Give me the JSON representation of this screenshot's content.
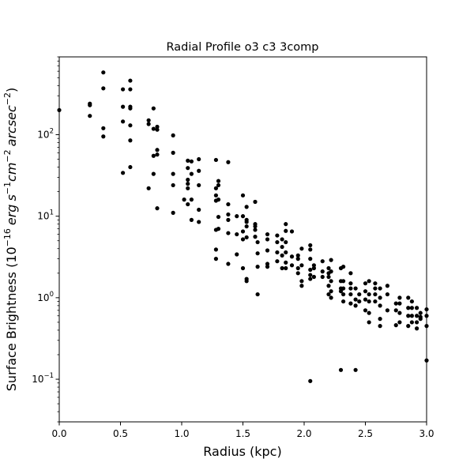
{
  "chart_data": {
    "type": "scatter",
    "title": "Radial Profile o3 c3 3comp",
    "xlabel": "Radius (kpc)",
    "ylabel": "Surface Brightness (10^{-16} erg s^{-1} cm^{-2} arcsec^{-2})",
    "ylabel_parts": {
      "prefix": "Surface Brightness (",
      "base": "10",
      "base_exp": "−16",
      "unit1": "erg",
      "unit2": "s",
      "unit2_exp": "−1",
      "unit3": "cm",
      "unit3_exp": "−2",
      "unit4": "arcsec",
      "unit4_exp": "−2",
      "suffix": ")"
    },
    "xlim": [
      0,
      3.0
    ],
    "ylim": [
      0.03,
      900
    ],
    "yscale": "log",
    "grid": false,
    "legend": "none",
    "marker_color": "#000000",
    "x_ticks": [
      {
        "value": 0.0,
        "label": "0.0"
      },
      {
        "value": 0.5,
        "label": "0.5"
      },
      {
        "value": 1.0,
        "label": "1.0"
      },
      {
        "value": 1.5,
        "label": "1.5"
      },
      {
        "value": 2.0,
        "label": "2.0"
      },
      {
        "value": 2.5,
        "label": "2.5"
      },
      {
        "value": 3.0,
        "label": "3.0"
      }
    ],
    "y_ticks": [
      {
        "value": 0.1,
        "base": "10",
        "exp": "−1"
      },
      {
        "value": 1,
        "base": "10",
        "exp": "0"
      },
      {
        "value": 10,
        "base": "10",
        "exp": "1"
      },
      {
        "value": 100,
        "base": "10",
        "exp": "2"
      }
    ],
    "points": [
      [
        0.0,
        200
      ],
      [
        0.25,
        240
      ],
      [
        0.25,
        230
      ],
      [
        0.25,
        170
      ],
      [
        0.36,
        580
      ],
      [
        0.36,
        370
      ],
      [
        0.36,
        120
      ],
      [
        0.36,
        95
      ],
      [
        0.52,
        360
      ],
      [
        0.52,
        220
      ],
      [
        0.52,
        145
      ],
      [
        0.52,
        34
      ],
      [
        0.58,
        460
      ],
      [
        0.58,
        360
      ],
      [
        0.58,
        220
      ],
      [
        0.58,
        210
      ],
      [
        0.58,
        130
      ],
      [
        0.58,
        85
      ],
      [
        0.58,
        40
      ],
      [
        0.73,
        150
      ],
      [
        0.73,
        135
      ],
      [
        0.73,
        22
      ],
      [
        0.77,
        210
      ],
      [
        0.77,
        118
      ],
      [
        0.77,
        55
      ],
      [
        0.77,
        33
      ],
      [
        0.8,
        125
      ],
      [
        0.8,
        115
      ],
      [
        0.8,
        65
      ],
      [
        0.8,
        57
      ],
      [
        0.8,
        12.5
      ],
      [
        0.93,
        98
      ],
      [
        0.93,
        60
      ],
      [
        0.93,
        33
      ],
      [
        0.93,
        24
      ],
      [
        0.93,
        11
      ],
      [
        1.02,
        16
      ],
      [
        1.05,
        48
      ],
      [
        1.05,
        39
      ],
      [
        1.05,
        28
      ],
      [
        1.05,
        25
      ],
      [
        1.05,
        22
      ],
      [
        1.05,
        14
      ],
      [
        1.08,
        47
      ],
      [
        1.08,
        33
      ],
      [
        1.08,
        16
      ],
      [
        1.08,
        9
      ],
      [
        1.14,
        50
      ],
      [
        1.14,
        36
      ],
      [
        1.14,
        24
      ],
      [
        1.14,
        12
      ],
      [
        1.14,
        8.5
      ],
      [
        1.28,
        49
      ],
      [
        1.28,
        22
      ],
      [
        1.28,
        18
      ],
      [
        1.28,
        15.5
      ],
      [
        1.28,
        6.8
      ],
      [
        1.28,
        3.9
      ],
      [
        1.28,
        3.0
      ],
      [
        1.3,
        27
      ],
      [
        1.3,
        24
      ],
      [
        1.3,
        16
      ],
      [
        1.3,
        9.8
      ],
      [
        1.3,
        7
      ],
      [
        1.38,
        46
      ],
      [
        1.38,
        14
      ],
      [
        1.38,
        10.5
      ],
      [
        1.38,
        9
      ],
      [
        1.38,
        6.2
      ],
      [
        1.38,
        2.6
      ],
      [
        1.45,
        10
      ],
      [
        1.45,
        6
      ],
      [
        1.45,
        3.4
      ],
      [
        1.5,
        18
      ],
      [
        1.5,
        10
      ],
      [
        1.5,
        6.5
      ],
      [
        1.5,
        5.2
      ],
      [
        1.5,
        2.3
      ],
      [
        1.53,
        13
      ],
      [
        1.53,
        9
      ],
      [
        1.53,
        8.5
      ],
      [
        1.53,
        7.5
      ],
      [
        1.53,
        5.5
      ],
      [
        1.53,
        1.7
      ],
      [
        1.53,
        1.6
      ],
      [
        1.6,
        15
      ],
      [
        1.6,
        8
      ],
      [
        1.6,
        7.5
      ],
      [
        1.6,
        6.8
      ],
      [
        1.6,
        5.6
      ],
      [
        1.62,
        4.8
      ],
      [
        1.62,
        3.5
      ],
      [
        1.62,
        2.4
      ],
      [
        1.62,
        1.1
      ],
      [
        1.7,
        6
      ],
      [
        1.7,
        5.2
      ],
      [
        1.7,
        3.8
      ],
      [
        1.7,
        2.6
      ],
      [
        1.7,
        2.4
      ],
      [
        1.78,
        5.8
      ],
      [
        1.78,
        4.8
      ],
      [
        1.78,
        3.6
      ],
      [
        1.78,
        2.8
      ],
      [
        1.82,
        5.2
      ],
      [
        1.82,
        4.2
      ],
      [
        1.82,
        3.3
      ],
      [
        1.82,
        2.3
      ],
      [
        1.85,
        8
      ],
      [
        1.85,
        6.6
      ],
      [
        1.85,
        4.8
      ],
      [
        1.85,
        3.6
      ],
      [
        1.85,
        2.7
      ],
      [
        1.85,
        2.3
      ],
      [
        1.9,
        6.5
      ],
      [
        1.9,
        3.2
      ],
      [
        1.9,
        2.5
      ],
      [
        1.95,
        3.3
      ],
      [
        1.95,
        3.0
      ],
      [
        1.95,
        2.3
      ],
      [
        1.95,
        2.0
      ],
      [
        1.98,
        4.0
      ],
      [
        1.98,
        2.5
      ],
      [
        1.98,
        1.6
      ],
      [
        1.98,
        1.4
      ],
      [
        2.05,
        4.4
      ],
      [
        2.05,
        3.9
      ],
      [
        2.05,
        3.0
      ],
      [
        2.05,
        2.2
      ],
      [
        2.05,
        1.9
      ],
      [
        2.05,
        1.7
      ],
      [
        2.05,
        0.095
      ],
      [
        2.08,
        2.5
      ],
      [
        2.08,
        2.3
      ],
      [
        2.08,
        1.8
      ],
      [
        2.15,
        2.8
      ],
      [
        2.15,
        2.1
      ],
      [
        2.15,
        1.8
      ],
      [
        2.2,
        2.3
      ],
      [
        2.2,
        2.0
      ],
      [
        2.2,
        1.8
      ],
      [
        2.2,
        1.4
      ],
      [
        2.2,
        1.1
      ],
      [
        2.22,
        2.9
      ],
      [
        2.22,
        2.1
      ],
      [
        2.22,
        1.6
      ],
      [
        2.22,
        1.2
      ],
      [
        2.22,
        1.0
      ],
      [
        2.3,
        2.3
      ],
      [
        2.3,
        1.6
      ],
      [
        2.3,
        1.3
      ],
      [
        2.3,
        1.2
      ],
      [
        2.3,
        0.13
      ],
      [
        2.32,
        2.4
      ],
      [
        2.32,
        1.6
      ],
      [
        2.32,
        1.3
      ],
      [
        2.32,
        1.1
      ],
      [
        2.32,
        0.9
      ],
      [
        2.38,
        2.0
      ],
      [
        2.38,
        1.5
      ],
      [
        2.38,
        1.3
      ],
      [
        2.38,
        1.1
      ],
      [
        2.38,
        0.85
      ],
      [
        2.42,
        1.3
      ],
      [
        2.42,
        0.95
      ],
      [
        2.42,
        0.8
      ],
      [
        2.42,
        0.13
      ],
      [
        2.45,
        1.1
      ],
      [
        2.45,
        0.9
      ],
      [
        2.5,
        1.5
      ],
      [
        2.5,
        1.2
      ],
      [
        2.5,
        0.95
      ],
      [
        2.5,
        0.7
      ],
      [
        2.53,
        1.6
      ],
      [
        2.53,
        1.1
      ],
      [
        2.53,
        0.9
      ],
      [
        2.53,
        0.65
      ],
      [
        2.53,
        0.5
      ],
      [
        2.58,
        1.5
      ],
      [
        2.58,
        1.3
      ],
      [
        2.58,
        1.1
      ],
      [
        2.58,
        0.9
      ],
      [
        2.62,
        1.3
      ],
      [
        2.62,
        1.0
      ],
      [
        2.62,
        0.8
      ],
      [
        2.62,
        0.55
      ],
      [
        2.62,
        0.45
      ],
      [
        2.68,
        1.4
      ],
      [
        2.68,
        1.1
      ],
      [
        2.68,
        0.7
      ],
      [
        2.75,
        0.85
      ],
      [
        2.75,
        0.7
      ],
      [
        2.75,
        0.46
      ],
      [
        2.78,
        1.0
      ],
      [
        2.78,
        0.85
      ],
      [
        2.78,
        0.65
      ],
      [
        2.78,
        0.5
      ],
      [
        2.85,
        1.0
      ],
      [
        2.85,
        0.75
      ],
      [
        2.85,
        0.6
      ],
      [
        2.85,
        0.45
      ],
      [
        2.88,
        0.9
      ],
      [
        2.88,
        0.75
      ],
      [
        2.88,
        0.6
      ],
      [
        2.88,
        0.5
      ],
      [
        2.92,
        0.75
      ],
      [
        2.92,
        0.6
      ],
      [
        2.92,
        0.5
      ],
      [
        2.92,
        0.42
      ],
      [
        2.95,
        0.65
      ],
      [
        2.95,
        0.58
      ],
      [
        2.95,
        0.55
      ],
      [
        3.0,
        0.72
      ],
      [
        3.0,
        0.6
      ],
      [
        3.0,
        0.45
      ],
      [
        3.0,
        0.17
      ]
    ]
  }
}
